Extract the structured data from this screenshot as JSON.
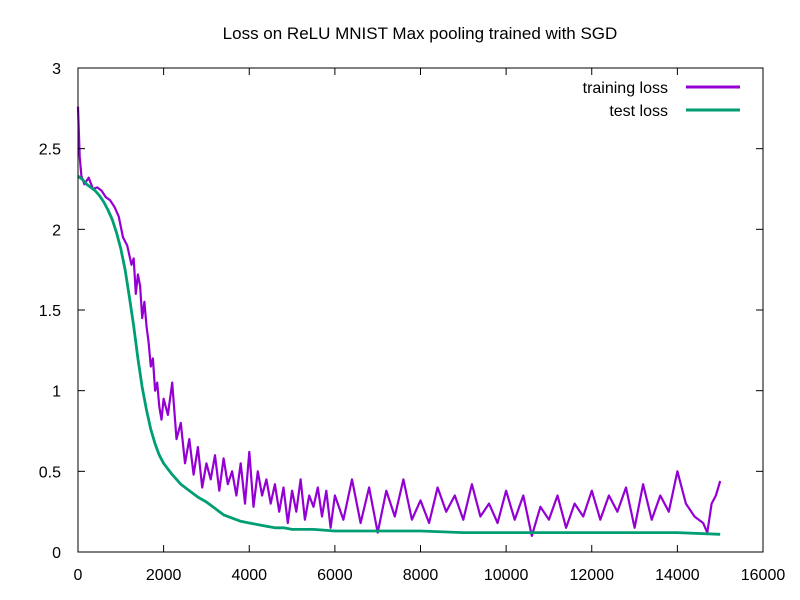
{
  "chart_data": {
    "type": "line",
    "title": "Loss on ReLU MNIST Max pooling trained with SGD",
    "xlabel": "",
    "ylabel": "",
    "xlim": [
      0,
      16000
    ],
    "ylim": [
      0,
      3
    ],
    "grid": false,
    "legend_position": "top-right",
    "x_ticks": [
      "0",
      "2000",
      "4000",
      "6000",
      "8000",
      "10000",
      "12000",
      "14000",
      "16000"
    ],
    "y_ticks": [
      "0",
      "0.5",
      "1",
      "1.5",
      "2",
      "2.5",
      "3"
    ],
    "series": [
      {
        "name": "training loss",
        "color": "#9400d3",
        "x": [
          0,
          40,
          80,
          150,
          250,
          350,
          450,
          550,
          650,
          750,
          850,
          950,
          1050,
          1150,
          1250,
          1300,
          1350,
          1400,
          1450,
          1500,
          1550,
          1600,
          1650,
          1700,
          1750,
          1800,
          1850,
          1900,
          1950,
          2000,
          2100,
          2200,
          2300,
          2400,
          2500,
          2600,
          2700,
          2800,
          2900,
          3000,
          3100,
          3200,
          3300,
          3400,
          3500,
          3600,
          3700,
          3800,
          3900,
          4000,
          4100,
          4200,
          4300,
          4400,
          4500,
          4600,
          4700,
          4800,
          4900,
          5000,
          5100,
          5200,
          5300,
          5400,
          5500,
          5600,
          5700,
          5800,
          5900,
          6000,
          6200,
          6400,
          6600,
          6800,
          7000,
          7200,
          7400,
          7600,
          7800,
          8000,
          8200,
          8400,
          8600,
          8800,
          9000,
          9200,
          9400,
          9600,
          9800,
          10000,
          10200,
          10400,
          10600,
          10800,
          11000,
          11200,
          11400,
          11600,
          11800,
          12000,
          12200,
          12400,
          12600,
          12800,
          13000,
          13200,
          13400,
          13600,
          13800,
          14000,
          14200,
          14400,
          14600,
          14700,
          14800,
          14900,
          15000
        ],
        "values": [
          2.76,
          2.45,
          2.33,
          2.28,
          2.32,
          2.25,
          2.26,
          2.24,
          2.2,
          2.18,
          2.14,
          2.08,
          1.95,
          1.9,
          1.78,
          1.82,
          1.6,
          1.72,
          1.65,
          1.45,
          1.55,
          1.4,
          1.3,
          1.15,
          1.2,
          1.0,
          1.05,
          0.9,
          0.82,
          0.95,
          0.85,
          1.05,
          0.7,
          0.8,
          0.55,
          0.7,
          0.48,
          0.65,
          0.4,
          0.55,
          0.45,
          0.6,
          0.38,
          0.58,
          0.42,
          0.5,
          0.35,
          0.55,
          0.3,
          0.62,
          0.28,
          0.5,
          0.35,
          0.45,
          0.3,
          0.42,
          0.25,
          0.4,
          0.18,
          0.38,
          0.25,
          0.45,
          0.2,
          0.35,
          0.28,
          0.4,
          0.22,
          0.38,
          0.15,
          0.35,
          0.2,
          0.45,
          0.18,
          0.4,
          0.12,
          0.38,
          0.22,
          0.45,
          0.2,
          0.32,
          0.18,
          0.4,
          0.25,
          0.35,
          0.2,
          0.42,
          0.22,
          0.3,
          0.18,
          0.38,
          0.2,
          0.35,
          0.1,
          0.28,
          0.2,
          0.35,
          0.15,
          0.3,
          0.22,
          0.38,
          0.2,
          0.35,
          0.25,
          0.4,
          0.15,
          0.42,
          0.2,
          0.35,
          0.25,
          0.5,
          0.3,
          0.22,
          0.18,
          0.12,
          0.3,
          0.35,
          0.44
        ]
      },
      {
        "name": "test loss",
        "color": "#009e73",
        "x": [
          0,
          100,
          200,
          300,
          400,
          500,
          600,
          700,
          800,
          900,
          1000,
          1100,
          1200,
          1300,
          1400,
          1500,
          1600,
          1700,
          1800,
          1900,
          2000,
          2200,
          2400,
          2600,
          2800,
          3000,
          3200,
          3400,
          3600,
          3800,
          4000,
          4200,
          4400,
          4600,
          4800,
          5000,
          5500,
          6000,
          6500,
          7000,
          7500,
          8000,
          9000,
          10000,
          11000,
          12000,
          13000,
          14000,
          15000
        ],
        "values": [
          2.33,
          2.31,
          2.28,
          2.26,
          2.24,
          2.21,
          2.17,
          2.12,
          2.06,
          1.98,
          1.88,
          1.75,
          1.58,
          1.4,
          1.2,
          1.02,
          0.88,
          0.76,
          0.67,
          0.6,
          0.55,
          0.48,
          0.42,
          0.38,
          0.34,
          0.31,
          0.27,
          0.23,
          0.21,
          0.19,
          0.18,
          0.17,
          0.16,
          0.15,
          0.15,
          0.14,
          0.14,
          0.13,
          0.13,
          0.13,
          0.13,
          0.13,
          0.12,
          0.12,
          0.12,
          0.12,
          0.12,
          0.12,
          0.11
        ]
      }
    ]
  }
}
